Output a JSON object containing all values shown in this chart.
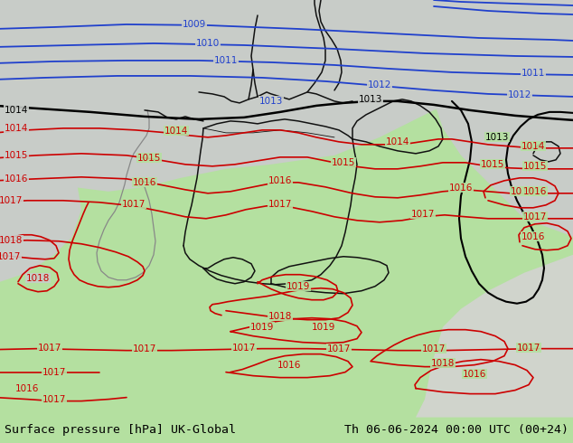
{
  "title_left": "Surface pressure [hPa] UK-Global",
  "title_right": "Th 06-06-2024 00:00 UTC (00+24)",
  "bg_green": "#b4e0a0",
  "bg_gray": "#c8ccc8",
  "sea_gray": "#c0c4c0",
  "fig_width": 6.34,
  "fig_height": 4.9,
  "dpi": 100,
  "footer_fontsize": 9.5,
  "footer_color": "#000000"
}
